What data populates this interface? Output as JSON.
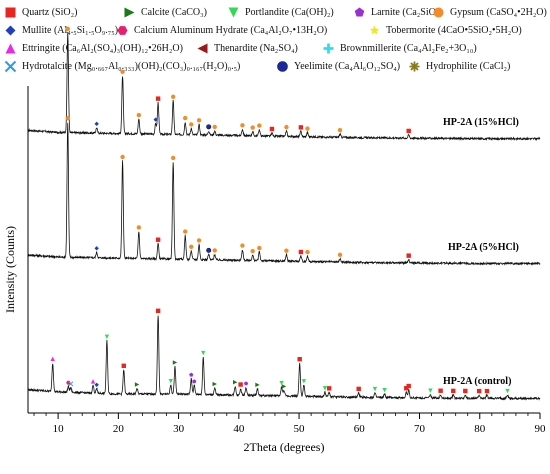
{
  "legend": [
    {
      "label": "Quartz (SiO₂)",
      "marker": "square",
      "color": "#e8251f"
    },
    {
      "label": "Calcite (CaCO₃)",
      "marker": "triangle-right",
      "color": "#1a7a1a"
    },
    {
      "label": "Portlandite (Ca(OH)₂)",
      "marker": "triangle-down",
      "color": "#33d957"
    },
    {
      "label": "Larnite (Ca₂SiO₄)",
      "marker": "pentagon",
      "color": "#9b2fd0"
    },
    {
      "label": "Gypsum (CaSO₄•2H₂O)",
      "marker": "circle",
      "color": "#f28c28"
    },
    {
      "label": "Mullite (Al₄.₅Si₁.₅O₉.₇₅)",
      "marker": "diamond",
      "color": "#1f3fbf"
    },
    {
      "label": "Calcium Aluminum Hydrate (Ca₄Al₂O₇•13H₂O)",
      "marker": "hexagon",
      "color": "#e6206e"
    },
    {
      "label": "Tobermorite (4CaO•5SiO₂•5H₂O)",
      "marker": "star",
      "color": "#f2e627"
    },
    {
      "label": "Ettringite (Ca₆Al₂(SO₄)₃(OH)₁₂•26H₂O)",
      "marker": "triangle-up",
      "color": "#e62ae6"
    },
    {
      "label": "Thenardite (Na₂SO₄)",
      "marker": "triangle-left",
      "color": "#9a1a1a"
    },
    {
      "label": "Brownmillerite (Ca₄Al₂Fe₂+3O₁₀)",
      "marker": "plus",
      "color": "#27e0f0"
    },
    {
      "label": "Hydrotalcite (Mg₀.₆₆₇Al₀.₃₃₃)(OH)₂(CO₃)₀.₁₆₇(H₂O)₀.₅)",
      "marker": "x",
      "color": "#2a9be6"
    },
    {
      "label": "Yeelimite (Ca₄Al₆O₁₂SO₄)",
      "marker": "ball",
      "color": "#1a2a9e"
    },
    {
      "label": "Hydrophilite (CaCl₂)",
      "marker": "asterisk",
      "color": "#8a7a1a"
    }
  ],
  "chart_data": {
    "type": "line",
    "xlabel": "2Theta (degrees)",
    "ylabel": "Intensity (Counts)",
    "xlim": [
      5,
      90
    ],
    "xticks": [
      10,
      20,
      30,
      40,
      50,
      60,
      70,
      80,
      90
    ],
    "y_tick_labels_shown": false,
    "series": [
      {
        "name": "HP-2A (15%HCl)",
        "baseline_x": [
          5,
          10,
          20,
          30,
          40,
          50,
          60,
          70,
          80,
          90
        ],
        "baseline": [
          0.14,
          0.12,
          0.11,
          0.1,
          0.09,
          0.08,
          0.07,
          0.065,
          0.06,
          0.06
        ],
        "peaks": [
          {
            "x": 11.6,
            "h": 0.95,
            "phase": "Gypsum"
          },
          {
            "x": 16.4,
            "h": 0.05,
            "phase": "Mullite"
          },
          {
            "x": 20.7,
            "h": 0.55,
            "phase": "Gypsum"
          },
          {
            "x": 23.4,
            "h": 0.14,
            "phase": "Gypsum"
          },
          {
            "x": 26.2,
            "h": 0.1,
            "phase": "Mullite"
          },
          {
            "x": 26.6,
            "h": 0.3,
            "phase": "Quartz"
          },
          {
            "x": 29.1,
            "h": 0.32,
            "phase": "Gypsum"
          },
          {
            "x": 31.1,
            "h": 0.12,
            "phase": "Gypsum"
          },
          {
            "x": 32.1,
            "h": 0.06,
            "phase": "Gypsum"
          },
          {
            "x": 33.4,
            "h": 0.1,
            "phase": "Gypsum"
          },
          {
            "x": 35.0,
            "h": 0.04,
            "phase": "Yeelimite"
          },
          {
            "x": 36.0,
            "h": 0.04,
            "phase": "Gypsum"
          },
          {
            "x": 40.6,
            "h": 0.06,
            "phase": "Gypsum"
          },
          {
            "x": 42.3,
            "h": 0.04,
            "phase": "Gypsum"
          },
          {
            "x": 43.4,
            "h": 0.06,
            "phase": "Gypsum"
          },
          {
            "x": 45.5,
            "h": 0.03,
            "phase": "Quartz"
          },
          {
            "x": 47.9,
            "h": 0.05,
            "phase": "Gypsum"
          },
          {
            "x": 50.3,
            "h": 0.05,
            "phase": "Quartz"
          },
          {
            "x": 51.4,
            "h": 0.04,
            "phase": "Gypsum"
          },
          {
            "x": 56.8,
            "h": 0.03,
            "phase": "Gypsum"
          },
          {
            "x": 68.2,
            "h": 0.03,
            "phase": "Quartz"
          }
        ]
      },
      {
        "name": "HP-2A (5%HCl)",
        "baseline_x": [
          5,
          10,
          20,
          30,
          40,
          50,
          60,
          70,
          80,
          90
        ],
        "baseline": [
          0.14,
          0.12,
          0.11,
          0.1,
          0.09,
          0.08,
          0.07,
          0.065,
          0.06,
          0.06
        ],
        "peaks": [
          {
            "x": 11.6,
            "h": 1.25,
            "phase": "Gypsum"
          },
          {
            "x": 16.4,
            "h": 0.05,
            "phase": "Mullite"
          },
          {
            "x": 20.7,
            "h": 0.9,
            "phase": "Gypsum"
          },
          {
            "x": 23.4,
            "h": 0.25,
            "phase": "Gypsum"
          },
          {
            "x": 26.6,
            "h": 0.14,
            "phase": "Quartz"
          },
          {
            "x": 29.1,
            "h": 0.9,
            "phase": "Gypsum"
          },
          {
            "x": 31.1,
            "h": 0.22,
            "phase": "Gypsum"
          },
          {
            "x": 32.1,
            "h": 0.08,
            "phase": "Gypsum"
          },
          {
            "x": 33.4,
            "h": 0.14,
            "phase": "Gypsum"
          },
          {
            "x": 35.0,
            "h": 0.05,
            "phase": "Yeelimite"
          },
          {
            "x": 36.0,
            "h": 0.05,
            "phase": "Gypsum"
          },
          {
            "x": 40.6,
            "h": 0.1,
            "phase": "Gypsum"
          },
          {
            "x": 42.3,
            "h": 0.05,
            "phase": "Gypsum"
          },
          {
            "x": 43.4,
            "h": 0.08,
            "phase": "Gypsum"
          },
          {
            "x": 47.9,
            "h": 0.06,
            "phase": "Gypsum"
          },
          {
            "x": 50.3,
            "h": 0.05,
            "phase": "Quartz"
          },
          {
            "x": 51.4,
            "h": 0.05,
            "phase": "Gypsum"
          },
          {
            "x": 56.8,
            "h": 0.03,
            "phase": "Gypsum"
          },
          {
            "x": 68.2,
            "h": 0.03,
            "phase": "Quartz"
          }
        ]
      },
      {
        "name": "HP-2A (control)",
        "baseline_x": [
          5,
          10,
          20,
          30,
          40,
          50,
          60,
          70,
          80,
          90
        ],
        "baseline": [
          0.14,
          0.12,
          0.1,
          0.1,
          0.09,
          0.08,
          0.07,
          0.065,
          0.06,
          0.06
        ],
        "peaks": [
          {
            "x": 9.1,
            "h": 0.26,
            "phase": "Ettringite"
          },
          {
            "x": 11.7,
            "h": 0.05,
            "phase": "Calcium Aluminum Hydrate"
          },
          {
            "x": 12.1,
            "h": 0.04,
            "phase": "Hydrotalcite"
          },
          {
            "x": 15.8,
            "h": 0.07,
            "phase": "Ettringite"
          },
          {
            "x": 16.4,
            "h": 0.04,
            "phase": "Mullite"
          },
          {
            "x": 18.1,
            "h": 0.48,
            "phase": "Portlandite"
          },
          {
            "x": 20.9,
            "h": 0.22,
            "phase": "Quartz"
          },
          {
            "x": 23.1,
            "h": 0.05,
            "phase": "Calcite"
          },
          {
            "x": 26.6,
            "h": 0.72,
            "phase": "Quartz"
          },
          {
            "x": 28.7,
            "h": 0.08,
            "phase": "Portlandite"
          },
          {
            "x": 29.4,
            "h": 0.25,
            "phase": "Calcite"
          },
          {
            "x": 32.1,
            "h": 0.14,
            "phase": "Larnite"
          },
          {
            "x": 32.6,
            "h": 0.08,
            "phase": "Larnite"
          },
          {
            "x": 34.1,
            "h": 0.34,
            "phase": "Portlandite"
          },
          {
            "x": 36.0,
            "h": 0.06,
            "phase": "Calcite"
          },
          {
            "x": 39.4,
            "h": 0.08,
            "phase": "Calcite"
          },
          {
            "x": 40.3,
            "h": 0.06,
            "phase": "Quartz"
          },
          {
            "x": 41.2,
            "h": 0.07,
            "phase": "Larnite"
          },
          {
            "x": 43.1,
            "h": 0.06,
            "phase": "Calcite"
          },
          {
            "x": 47.1,
            "h": 0.08,
            "phase": "Portlandite"
          },
          {
            "x": 47.5,
            "h": 0.05,
            "phase": "Calcite"
          },
          {
            "x": 50.1,
            "h": 0.3,
            "phase": "Quartz"
          },
          {
            "x": 50.8,
            "h": 0.1,
            "phase": "Portlandite"
          },
          {
            "x": 54.3,
            "h": 0.04,
            "phase": "Portlandite"
          },
          {
            "x": 55.0,
            "h": 0.04,
            "phase": "Quartz"
          },
          {
            "x": 59.9,
            "h": 0.04,
            "phase": "Quartz"
          },
          {
            "x": 62.6,
            "h": 0.04,
            "phase": "Portlandite"
          },
          {
            "x": 64.2,
            "h": 0.03,
            "phase": "Portlandite"
          },
          {
            "x": 67.8,
            "h": 0.05,
            "phase": "Quartz"
          },
          {
            "x": 68.2,
            "h": 0.07,
            "phase": "Quartz"
          },
          {
            "x": 71.8,
            "h": 0.03,
            "phase": "Portlandite"
          },
          {
            "x": 73.5,
            "h": 0.03,
            "phase": "Quartz"
          },
          {
            "x": 75.6,
            "h": 0.03,
            "phase": "Quartz"
          },
          {
            "x": 77.6,
            "h": 0.03,
            "phase": "Quartz"
          },
          {
            "x": 79.9,
            "h": 0.03,
            "phase": "Quartz"
          },
          {
            "x": 81.2,
            "h": 0.03,
            "phase": "Quartz"
          },
          {
            "x": 84.6,
            "h": 0.03,
            "phase": "Portlandite"
          }
        ]
      }
    ]
  }
}
